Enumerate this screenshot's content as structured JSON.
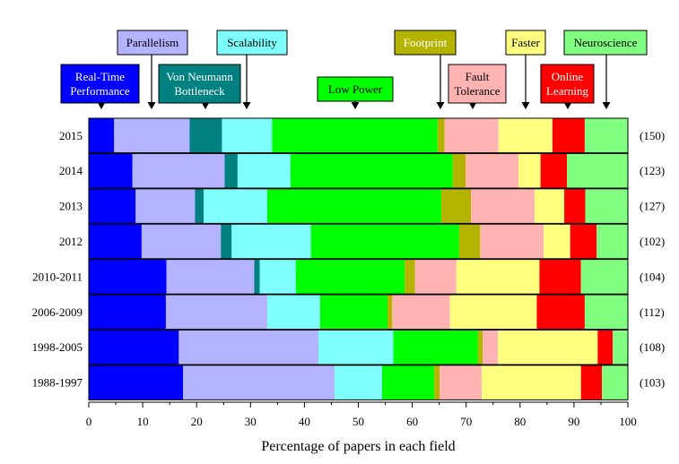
{
  "chart_data": {
    "type": "bar",
    "orientation": "horizontal",
    "stacked": true,
    "xlabel": "Percentage of papers in each field",
    "ylabel": "",
    "xlim": [
      0,
      100
    ],
    "xticks": [
      "0",
      "10",
      "20",
      "30",
      "40",
      "50",
      "60",
      "70",
      "80",
      "90",
      "100"
    ],
    "categories": [
      "2015",
      "2014",
      "2013",
      "2012",
      "2010-2011",
      "2006-2009",
      "1998-2005",
      "1988-1997"
    ],
    "counts": [
      "(150)",
      "(123)",
      "(127)",
      "(102)",
      "(104)",
      "(112)",
      "(108)",
      "(103)"
    ],
    "series": [
      {
        "name": "Real-Time Performance",
        "label_lines": [
          "Real-Time",
          "Performance"
        ],
        "color": "#0000ff",
        "text_color": "#ffffff",
        "values": [
          4.7,
          8.1,
          8.7,
          9.8,
          14.4,
          14.3,
          16.7,
          17.5
        ]
      },
      {
        "name": "Parallelism",
        "label_lines": [
          "Parallelism"
        ],
        "color": "#b3b3ff",
        "text_color": "#000000",
        "values": [
          14.0,
          17.1,
          11.0,
          14.7,
          16.3,
          18.8,
          25.9,
          28.1
        ]
      },
      {
        "name": "Von Neumann Bottleneck",
        "label_lines": [
          "Von Neumann",
          "Bottleneck"
        ],
        "color": "#008080",
        "text_color": "#ffffff",
        "values": [
          6.0,
          2.4,
          1.6,
          2.0,
          1.0,
          0.0,
          0.0,
          0.0
        ]
      },
      {
        "name": "Scalability",
        "label_lines": [
          "Scalability"
        ],
        "color": "#80ffff",
        "text_color": "#000000",
        "values": [
          9.3,
          9.8,
          11.8,
          14.7,
          6.7,
          9.8,
          13.9,
          8.8
        ]
      },
      {
        "name": "Low Power",
        "label_lines": [
          "Low Power"
        ],
        "color": "#00ff00",
        "text_color": "#000000",
        "values": [
          30.7,
          30.1,
          32.3,
          27.5,
          20.2,
          12.5,
          15.7,
          9.7
        ]
      },
      {
        "name": "Footprint",
        "label_lines": [
          "Footprint"
        ],
        "color": "#b3b300",
        "text_color": "#ffffff",
        "values": [
          1.3,
          2.4,
          5.5,
          3.9,
          1.9,
          0.9,
          0.9,
          1.0
        ]
      },
      {
        "name": "Fault Tolerance",
        "label_lines": [
          "Fault",
          "Tolerance"
        ],
        "color": "#ffb3b3",
        "text_color": "#000000",
        "values": [
          10.0,
          9.8,
          11.8,
          11.8,
          7.7,
          10.7,
          2.8,
          7.8
        ]
      },
      {
        "name": "Faster",
        "label_lines": [
          "Faster"
        ],
        "color": "#ffff80",
        "text_color": "#000000",
        "values": [
          10.0,
          4.1,
          5.5,
          4.9,
          15.4,
          16.1,
          18.5,
          18.4
        ]
      },
      {
        "name": "Online Learning",
        "label_lines": [
          "Online",
          "Learning"
        ],
        "color": "#ff0000",
        "text_color": "#ffffff",
        "values": [
          6.0,
          4.9,
          3.9,
          4.9,
          7.7,
          8.9,
          2.8,
          3.9
        ]
      },
      {
        "name": "Neuroscience",
        "label_lines": [
          "Neuroscience"
        ],
        "color": "#80ff80",
        "text_color": "#000000",
        "values": [
          8.0,
          11.4,
          7.9,
          5.9,
          8.7,
          8.0,
          2.8,
          4.8
        ]
      }
    ]
  }
}
